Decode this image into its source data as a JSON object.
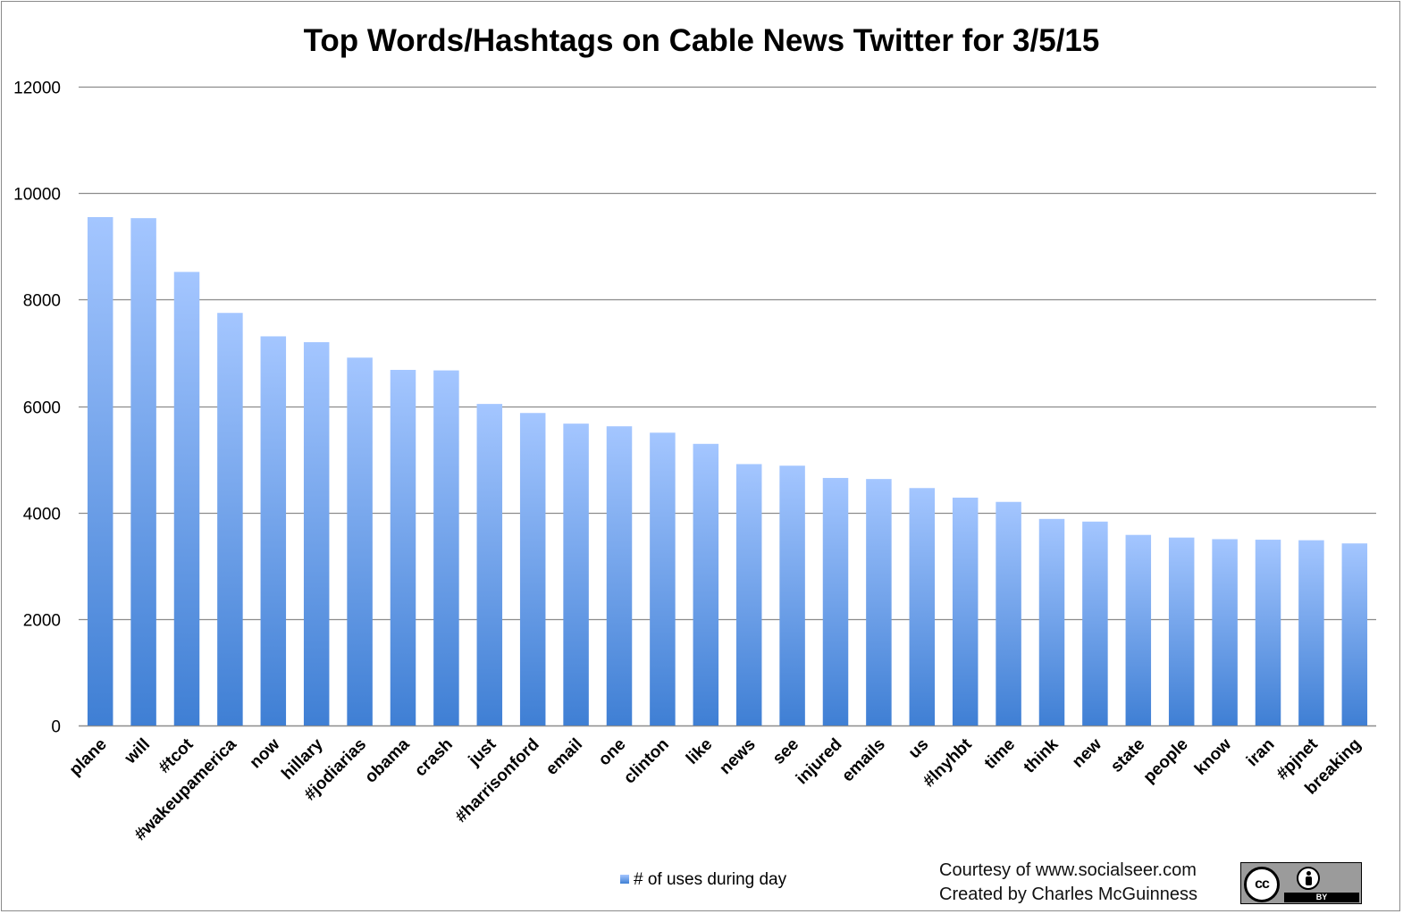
{
  "chart_data": {
    "type": "bar",
    "title": "Top Words/Hashtags on Cable News Twitter for 3/5/15",
    "xlabel": "",
    "ylabel": "",
    "ylim": [
      0,
      12000
    ],
    "yticks": [
      0,
      2000,
      4000,
      6000,
      8000,
      10000,
      12000
    ],
    "grid": true,
    "legend_position": "bottom",
    "categories": [
      "plane",
      "will",
      "#tcot",
      "#wakeupamerica",
      "now",
      "hillary",
      "#jodiarias",
      "obama",
      "crash",
      "just",
      "#harrisonford",
      "email",
      "one",
      "clinton",
      "like",
      "news",
      "see",
      "injured",
      "emails",
      "us",
      "#lnyhbt",
      "time",
      "think",
      "new",
      "state",
      "people",
      "know",
      "iran",
      "#pjnet",
      "breaking"
    ],
    "series": [
      {
        "name": "# of uses during day",
        "color_top": "#a4c6ff",
        "color_bottom": "#3f7fd4",
        "values": [
          9550,
          9530,
          8520,
          7750,
          7310,
          7200,
          6910,
          6680,
          6670,
          6040,
          5870,
          5670,
          5620,
          5500,
          5290,
          4910,
          4880,
          4650,
          4630,
          4460,
          4280,
          4200,
          3880,
          3830,
          3580,
          3530,
          3500,
          3490,
          3480,
          3420
        ]
      }
    ]
  },
  "legend": {
    "label": "# of uses during day"
  },
  "credits": {
    "line1": "Courtesy of www.socialseer.com",
    "line2": "Created by Charles McGuinness"
  },
  "license_badge": {
    "cc_text": "cc",
    "by_text": "BY"
  },
  "colors": {
    "gridline": "#8c8c8c",
    "text": "#000000"
  }
}
